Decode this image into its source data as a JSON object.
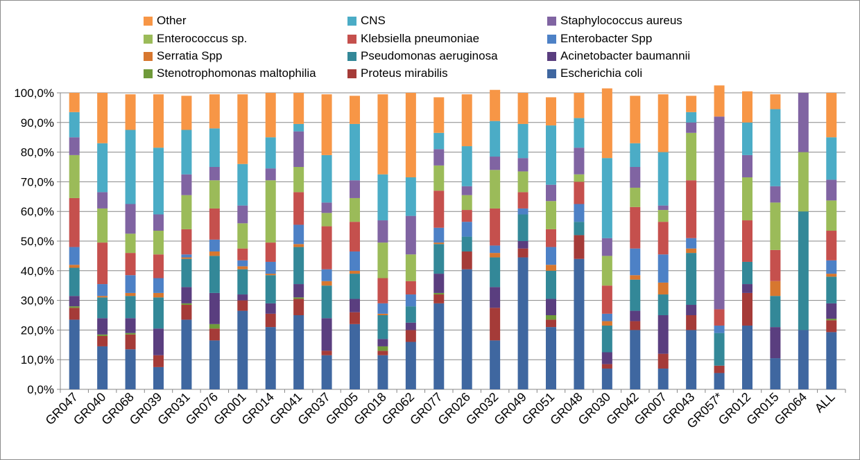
{
  "chart_data": {
    "type": "bar",
    "stacked": true,
    "percent": true,
    "title": "",
    "xlabel": "",
    "ylabel": "",
    "ylim": [
      0,
      100
    ],
    "y_ticks": [
      "0,0%",
      "10,0%",
      "20,0%",
      "30,0%",
      "40,0%",
      "50,0%",
      "60,0%",
      "70,0%",
      "80,0%",
      "90,0%",
      "100,0%"
    ],
    "grid": true,
    "legend_position": "top",
    "categories": [
      "GR047",
      "GR040",
      "GR068",
      "GR039",
      "GR031",
      "GR076",
      "GR001",
      "GR014",
      "GR041",
      "GR037",
      "GR005",
      "GR018",
      "GR062",
      "GR077",
      "GR026",
      "GR032",
      "GR049",
      "GR051",
      "GR048",
      "GR030",
      "GR042",
      "GR007",
      "GR043",
      "GR057*",
      "GR012",
      "GR015",
      "GR064",
      "ALL"
    ],
    "series": [
      {
        "name": "Escherichia coli",
        "color": "#3f67a0",
        "values": [
          23.5,
          14.5,
          13.5,
          7.5,
          23.5,
          16.5,
          26.5,
          21,
          25,
          11.5,
          22,
          11.5,
          16,
          29,
          40.5,
          16.5,
          44.5,
          21,
          44,
          7,
          20,
          7,
          20,
          5.5,
          21.5,
          10.5,
          20,
          19.3
        ]
      },
      {
        "name": "Proteus mirabilis",
        "color": "#a53b38",
        "values": [
          4,
          3.5,
          5,
          4,
          5,
          4,
          3.5,
          4.5,
          5.5,
          1.5,
          4,
          1.5,
          4,
          3,
          6,
          11,
          3,
          2.5,
          8,
          1.5,
          3,
          5,
          5,
          2.5,
          11,
          0,
          0,
          4
        ]
      },
      {
        "name": "Stenotrophomonas maltophilia",
        "color": "#6f9a3a",
        "values": [
          0.5,
          0.5,
          0.5,
          0,
          0.5,
          1.5,
          0,
          0,
          0.5,
          0,
          0,
          1.5,
          0,
          0.5,
          0,
          0,
          0,
          1.5,
          0,
          0,
          0,
          0,
          0,
          0,
          0,
          0,
          0,
          0.5
        ]
      },
      {
        "name": "Acinetobacter baumannii",
        "color": "#5a3e7f",
        "values": [
          3.5,
          5.5,
          5,
          9,
          5.5,
          10.5,
          2,
          3.5,
          4.5,
          11,
          4.5,
          2.5,
          2.5,
          6.5,
          0,
          7,
          2.5,
          5.5,
          0,
          4,
          3.5,
          13,
          3.5,
          0,
          3,
          10.5,
          0,
          5.2
        ]
      },
      {
        "name": "Pseudomonas aeruginosa",
        "color": "#338898",
        "values": [
          9.5,
          7,
          7.5,
          10.5,
          9.5,
          12.5,
          8.5,
          9.5,
          12.5,
          11,
          8.5,
          8,
          5.5,
          10,
          5,
          10,
          9,
          9.5,
          4.5,
          9,
          10.5,
          7,
          17.5,
          11,
          7.5,
          10.5,
          40,
          9
        ]
      },
      {
        "name": "Serratia Spp",
        "color": "#d7772f",
        "values": [
          1,
          0.5,
          1,
          1.5,
          0.5,
          1.5,
          1,
          0.5,
          1,
          1.5,
          1,
          0.5,
          0,
          0.5,
          0,
          1.5,
          0,
          2,
          0,
          1.5,
          1.5,
          4,
          1.5,
          0,
          0,
          5,
          0,
          1
        ]
      },
      {
        "name": "Enterobacter Spp",
        "color": "#4d81c6",
        "values": [
          6,
          4,
          6,
          5,
          1,
          4,
          2,
          4,
          6.5,
          4,
          6.5,
          3.5,
          4,
          5,
          5,
          2.5,
          2,
          6,
          6,
          2.5,
          9,
          9.5,
          3.5,
          2.5,
          0,
          0,
          0,
          4.5
        ]
      },
      {
        "name": "Klebsiella pneumoniae",
        "color": "#c5504d",
        "values": [
          16.5,
          14,
          7.5,
          8,
          8.5,
          10.5,
          4,
          6.5,
          11,
          14.5,
          10,
          8.5,
          4.5,
          12.5,
          4,
          12.5,
          5.5,
          6,
          7.5,
          9.5,
          14,
          11,
          19.5,
          5.5,
          14,
          10.5,
          0,
          10
        ]
      },
      {
        "name": "Enterococcus sp.",
        "color": "#9bbb59",
        "values": [
          14.5,
          11.5,
          6.5,
          8,
          11.5,
          9.5,
          8.5,
          21,
          8.5,
          4.5,
          8,
          12,
          9,
          8.5,
          5,
          13,
          7,
          9.5,
          2.5,
          10,
          6.5,
          4,
          16,
          0,
          14.5,
          16,
          20,
          10.2
        ]
      },
      {
        "name": "Staphylococcus aureus",
        "color": "#8064a2",
        "values": [
          6,
          5.5,
          10,
          5.5,
          7,
          4.5,
          6,
          4,
          12,
          3.5,
          6,
          7.5,
          13,
          5.5,
          3,
          4.5,
          4.5,
          5.5,
          9,
          6,
          7,
          1.5,
          3.5,
          65,
          7.5,
          5.5,
          20,
          7
        ]
      },
      {
        "name": "CNS",
        "color": "#4bacc6",
        "values": [
          8.5,
          16.5,
          25,
          22.5,
          15,
          13,
          14,
          10.5,
          2.5,
          16,
          19,
          15.5,
          13,
          5.5,
          13.5,
          12,
          11.5,
          20,
          10,
          27,
          8,
          18,
          3.5,
          0,
          11,
          26,
          0,
          14.3
        ]
      },
      {
        "name": "Other",
        "color": "#f79646",
        "values": [
          6.5,
          17,
          12,
          18,
          11.5,
          11.5,
          23.5,
          15,
          10.5,
          20.5,
          9.5,
          27,
          28.5,
          12,
          17.5,
          10.5,
          10.5,
          9.5,
          8.5,
          23.5,
          16,
          19.5,
          5.5,
          10.5,
          10.5,
          5,
          0,
          15
        ]
      }
    ]
  },
  "legend": [
    {
      "label": "Other",
      "color": "#f79646"
    },
    {
      "label": "CNS",
      "color": "#4bacc6"
    },
    {
      "label": "Staphylococcus aureus",
      "color": "#8064a2"
    },
    {
      "label": "Enterococcus sp.",
      "color": "#9bbb59"
    },
    {
      "label": "Klebsiella pneumoniae",
      "color": "#c5504d"
    },
    {
      "label": "Enterobacter Spp",
      "color": "#4d81c6"
    },
    {
      "label": "Serratia Spp",
      "color": "#d7772f"
    },
    {
      "label": "Pseudomonas aeruginosa",
      "color": "#338898"
    },
    {
      "label": "Acinetobacter baumannii",
      "color": "#5a3e7f"
    },
    {
      "label": "Stenotrophomonas maltophilia",
      "color": "#6f9a3a"
    },
    {
      "label": "Proteus mirabilis",
      "color": "#a53b38"
    },
    {
      "label": "Escherichia coli",
      "color": "#3f67a0"
    }
  ]
}
